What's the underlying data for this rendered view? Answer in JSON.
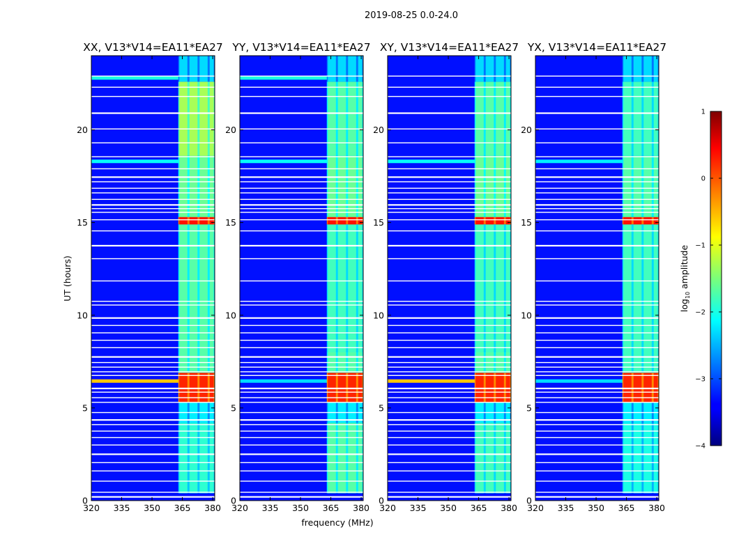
{
  "chart_data": {
    "type": "heatmap",
    "suptitle": "2019-08-25 0.0-24.0",
    "xlabel": "frequency (MHz)",
    "ylabel": "UT (hours)",
    "xlim": [
      320,
      381
    ],
    "ylim": [
      0,
      24
    ],
    "x_ticks": [
      320,
      335,
      350,
      365,
      380
    ],
    "y_ticks": [
      0,
      5,
      10,
      15,
      20
    ],
    "grid": false,
    "colorbar": {
      "label": "log",
      "label_sub": "10",
      "label_suffix": " amplitude",
      "range": [
        -4,
        1
      ],
      "ticks": [
        1,
        0,
        -1,
        -2,
        -3,
        -4
      ],
      "colormap": "jet"
    },
    "rfi_band_mhz": [
      363,
      381
    ],
    "rfi_subchannels_mhz": [
      [
        363.5,
        367.5
      ],
      [
        368.5,
        372.5
      ],
      [
        373.5,
        377.5
      ],
      [
        378.5,
        380.5
      ]
    ],
    "flagged_rows_ut": [
      0.2,
      0.45,
      1.05,
      1.6,
      2.05,
      2.5,
      3.0,
      3.4,
      3.75,
      4.1,
      4.35,
      4.75,
      5.3,
      5.55,
      5.85,
      6.05,
      6.75,
      6.95,
      7.2,
      7.45,
      7.75,
      8.25,
      8.65,
      9.05,
      9.45,
      9.85,
      10.55,
      10.75,
      11.85,
      13.05,
      13.75,
      14.55,
      15.15,
      15.55,
      15.75,
      15.95,
      16.25,
      16.6,
      16.85,
      17.2,
      17.45,
      17.9,
      18.55,
      19.3,
      20.05,
      20.9,
      21.8,
      22.3,
      22.9
    ],
    "panels": [
      {
        "title": "XX, V13*V14=EA11*EA27",
        "background_log_amp": -3.3,
        "rfi_bands": [
          {
            "ut": [
              0.4,
              4.2
            ],
            "log_amp": -1.9
          },
          {
            "ut": [
              4.2,
              5.3
            ],
            "log_amp": -2.2
          },
          {
            "ut": [
              5.3,
              6.9
            ],
            "log_amp": 0.2
          },
          {
            "ut": [
              6.9,
              8.0
            ],
            "log_amp": -1.7
          },
          {
            "ut": [
              8.0,
              14.9
            ],
            "log_amp": -1.7
          },
          {
            "ut": [
              14.9,
              15.3
            ],
            "log_amp": 0.3
          },
          {
            "ut": [
              15.3,
              18.6
            ],
            "log_amp": -1.6
          },
          {
            "ut": [
              18.6,
              22.6
            ],
            "log_amp": -1.3
          },
          {
            "ut": [
              22.6,
              24.0
            ],
            "log_amp": -2.3
          }
        ],
        "wideband_features": [
          {
            "ut": 6.45,
            "log_amp": -0.6
          },
          {
            "ut": 22.8,
            "log_amp": -2.0
          },
          {
            "ut": 18.3,
            "log_amp": -2.1
          }
        ]
      },
      {
        "title": "YY, V13*V14=EA11*EA27",
        "background_log_amp": -3.3,
        "rfi_bands": [
          {
            "ut": [
              0.4,
              4.2
            ],
            "log_amp": -1.7
          },
          {
            "ut": [
              4.2,
              5.3
            ],
            "log_amp": -2.2
          },
          {
            "ut": [
              5.3,
              6.9
            ],
            "log_amp": 0.2
          },
          {
            "ut": [
              6.9,
              8.0
            ],
            "log_amp": -1.7
          },
          {
            "ut": [
              8.0,
              14.9
            ],
            "log_amp": -1.8
          },
          {
            "ut": [
              14.9,
              15.3
            ],
            "log_amp": 0.3
          },
          {
            "ut": [
              15.3,
              18.6
            ],
            "log_amp": -1.6
          },
          {
            "ut": [
              18.6,
              22.6
            ],
            "log_amp": -1.7
          },
          {
            "ut": [
              22.6,
              24.0
            ],
            "log_amp": -2.3
          }
        ],
        "wideband_features": [
          {
            "ut": 6.45,
            "log_amp": -2.3
          },
          {
            "ut": 22.8,
            "log_amp": -2.0
          },
          {
            "ut": 18.3,
            "log_amp": -2.1
          }
        ]
      },
      {
        "title": "XY, V13*V14=EA11*EA27",
        "background_log_amp": -3.3,
        "rfi_bands": [
          {
            "ut": [
              0.4,
              4.2
            ],
            "log_amp": -1.8
          },
          {
            "ut": [
              4.2,
              5.3
            ],
            "log_amp": -2.2
          },
          {
            "ut": [
              5.3,
              6.9
            ],
            "log_amp": 0.2
          },
          {
            "ut": [
              6.9,
              8.0
            ],
            "log_amp": -1.7
          },
          {
            "ut": [
              8.0,
              14.9
            ],
            "log_amp": -1.8
          },
          {
            "ut": [
              14.9,
              15.3
            ],
            "log_amp": 0.3
          },
          {
            "ut": [
              15.3,
              18.6
            ],
            "log_amp": -1.6
          },
          {
            "ut": [
              18.6,
              22.6
            ],
            "log_amp": -1.7
          },
          {
            "ut": [
              22.6,
              24.0
            ],
            "log_amp": -2.3
          }
        ],
        "wideband_features": [
          {
            "ut": 6.45,
            "log_amp": -0.6
          },
          {
            "ut": 18.3,
            "log_amp": -2.1
          }
        ]
      },
      {
        "title": "YX, V13*V14=EA11*EA27",
        "background_log_amp": -3.3,
        "rfi_bands": [
          {
            "ut": [
              0.4,
              4.2
            ],
            "log_amp": -2.0
          },
          {
            "ut": [
              4.2,
              5.3
            ],
            "log_amp": -2.2
          },
          {
            "ut": [
              5.3,
              6.9
            ],
            "log_amp": 0.2
          },
          {
            "ut": [
              6.9,
              8.0
            ],
            "log_amp": -1.8
          },
          {
            "ut": [
              8.0,
              14.9
            ],
            "log_amp": -1.8
          },
          {
            "ut": [
              14.9,
              15.3
            ],
            "log_amp": 0.3
          },
          {
            "ut": [
              15.3,
              18.6
            ],
            "log_amp": -1.7
          },
          {
            "ut": [
              18.6,
              22.6
            ],
            "log_amp": -1.8
          },
          {
            "ut": [
              22.6,
              24.0
            ],
            "log_amp": -2.3
          }
        ],
        "wideband_features": [
          {
            "ut": 6.45,
            "log_amp": -2.3
          },
          {
            "ut": 18.3,
            "log_amp": -2.2
          }
        ]
      }
    ]
  }
}
